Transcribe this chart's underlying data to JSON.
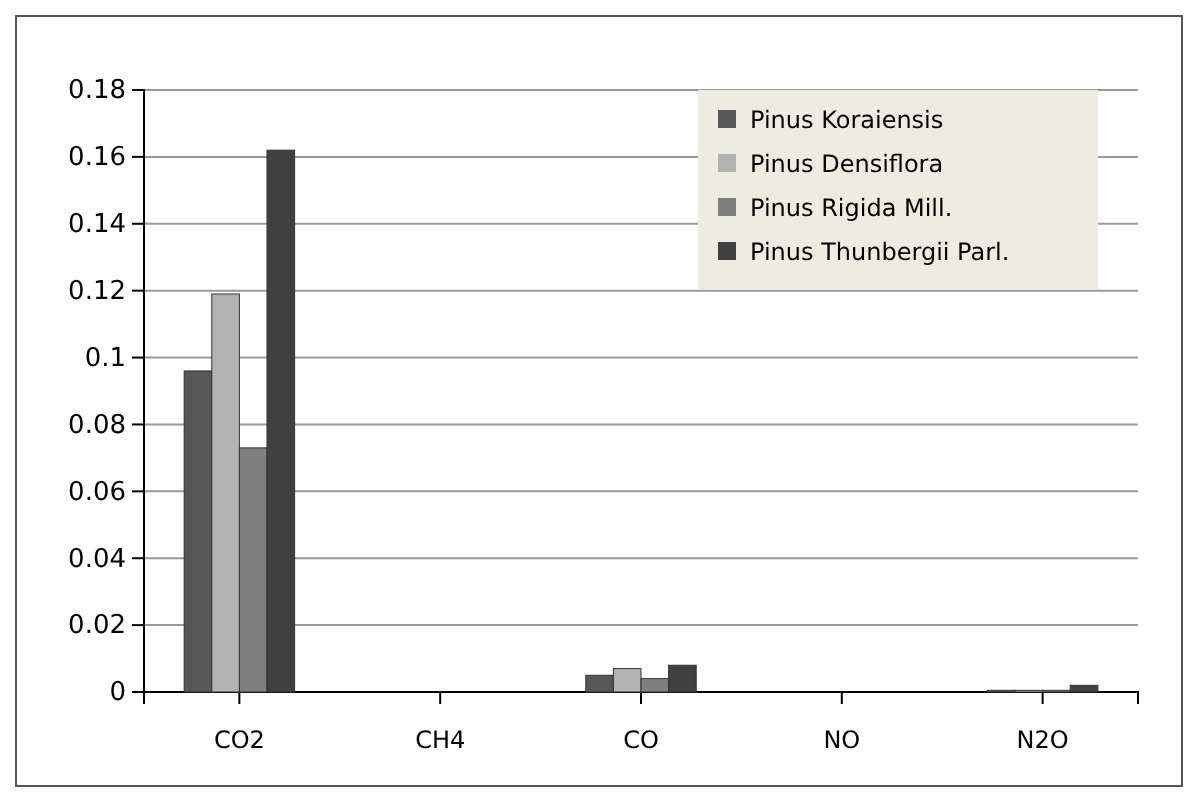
{
  "chart_data": {
    "type": "bar",
    "categories": [
      "CO2",
      "CH4",
      "CO",
      "NO",
      "N2O"
    ],
    "series": [
      {
        "name": "Pinus Koraiensis",
        "color": "#575757",
        "values": [
          0.096,
          0,
          0.005,
          0,
          0.0005
        ]
      },
      {
        "name": "Pinus Densiflora",
        "color": "#b2b2b2",
        "values": [
          0.119,
          0,
          0.007,
          0,
          0.0005
        ]
      },
      {
        "name": "Pinus Rigida Mill.",
        "color": "#7f7f7f",
        "values": [
          0.073,
          0,
          0.004,
          0,
          0.0005
        ]
      },
      {
        "name": "Pinus Thunbergii Parl.",
        "color": "#404040",
        "values": [
          0.162,
          0,
          0.008,
          0,
          0.002
        ]
      }
    ],
    "ylim": [
      0,
      0.18
    ],
    "yticks": [
      0,
      0.02,
      0.04,
      0.06,
      0.08,
      0.1,
      0.12,
      0.14,
      0.16,
      0.18
    ],
    "grid": "y",
    "legend": "top right"
  }
}
